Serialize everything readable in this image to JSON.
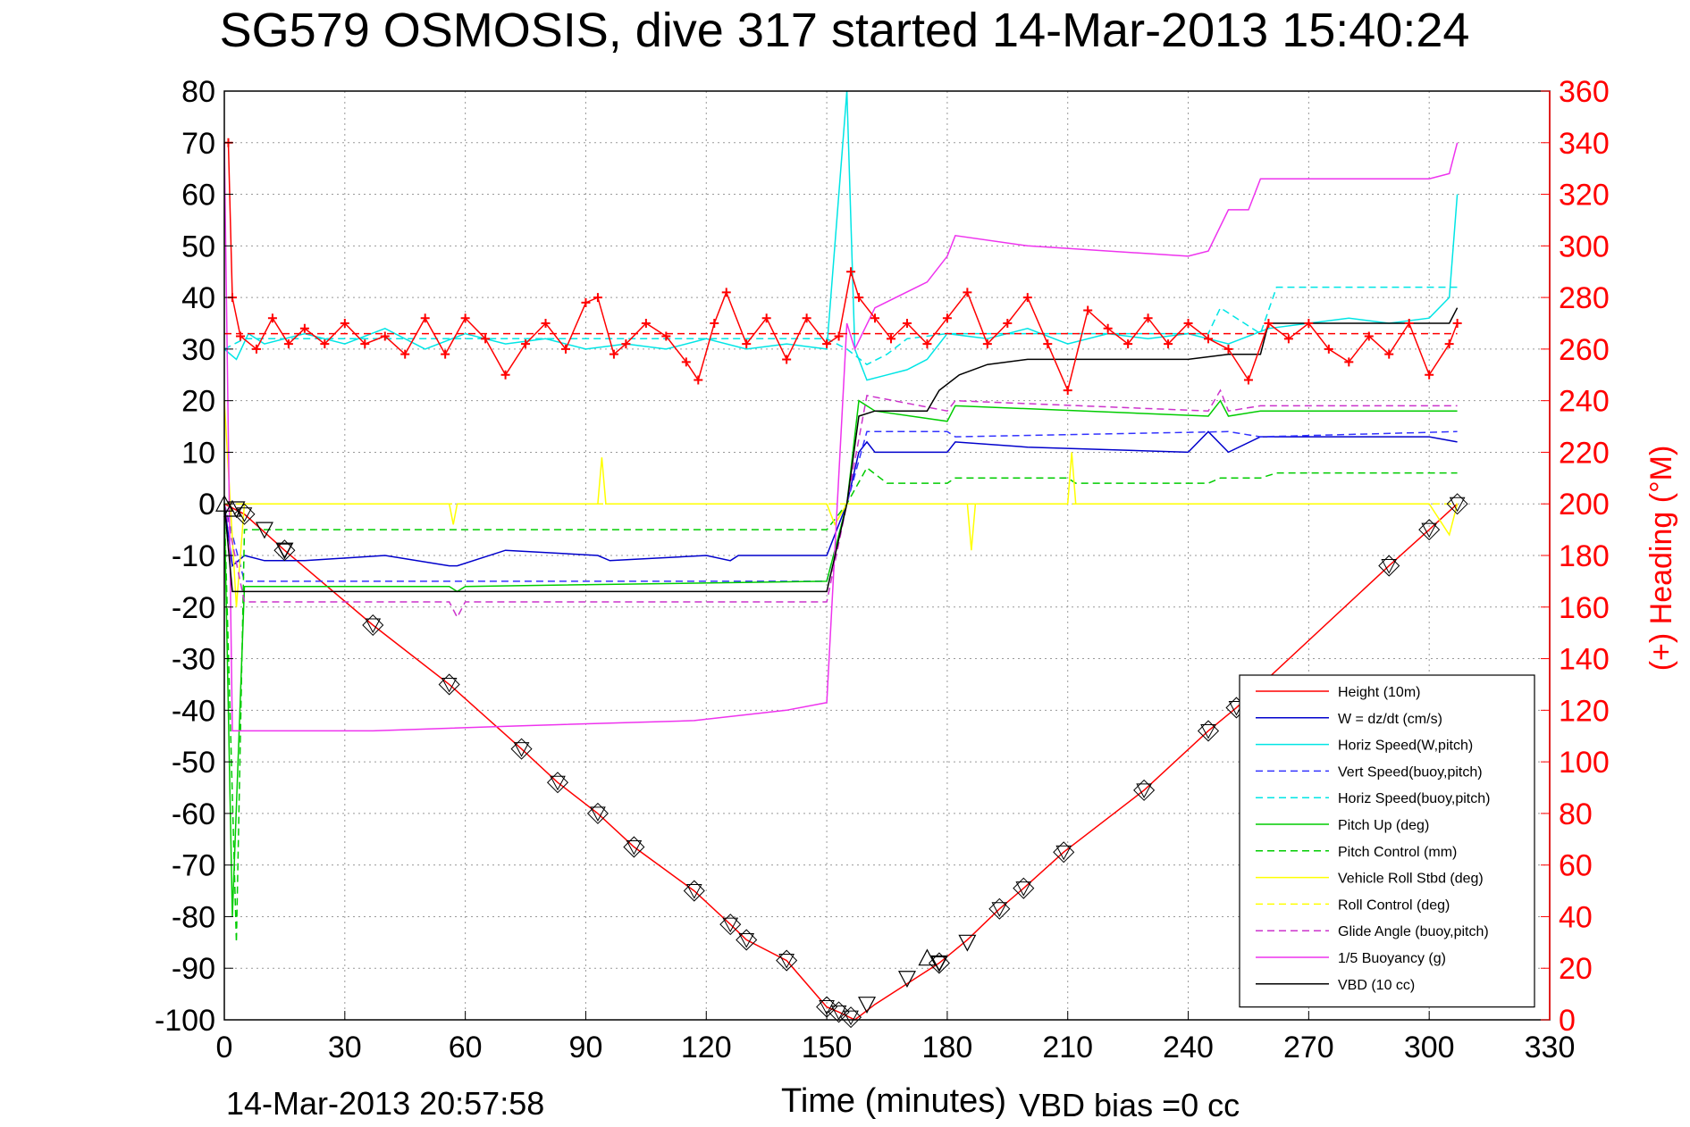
{
  "chart_data": {
    "type": "line",
    "title": "SG579 OSMOSIS, dive 317 started 14-Mar-2013 15:40:24",
    "xlabel": "Time (minutes)",
    "ylabel": "",
    "y2label": "(+) Heading (°M)",
    "footer_left": "14-Mar-2013 20:57:58",
    "footer_right": "VBD bias =0 cc",
    "xlim": [
      0,
      330
    ],
    "ylim": [
      -100,
      80
    ],
    "y2lim": [
      0,
      360
    ],
    "x_ticks": [
      0,
      30,
      60,
      90,
      120,
      150,
      180,
      210,
      240,
      270,
      300,
      330
    ],
    "y_ticks": [
      80,
      70,
      60,
      50,
      40,
      30,
      20,
      10,
      0,
      -10,
      -20,
      -30,
      -40,
      -50,
      -60,
      -70,
      -80,
      -90,
      -100
    ],
    "y2_ticks": [
      360,
      340,
      320,
      300,
      280,
      260,
      240,
      220,
      200,
      180,
      160,
      140,
      120,
      100,
      80,
      60,
      40,
      20,
      0
    ],
    "grid": true,
    "legend_position": "bottom-right",
    "series": [
      {
        "name": "Height (10m)",
        "color": "#ff0000",
        "style": "solid",
        "x": [
          0,
          5,
          15,
          37,
          56,
          74,
          83,
          93,
          102,
          117,
          126,
          130,
          140,
          150,
          153,
          157,
          162,
          178,
          185,
          193,
          199,
          209,
          229,
          245,
          252,
          290,
          300,
          307
        ],
        "y": [
          0,
          -2,
          -9,
          -23.5,
          -35,
          -47.5,
          -54,
          -60,
          -66.5,
          -75,
          -81.5,
          -84.5,
          -88.5,
          -97.5,
          -98.5,
          -100,
          -97,
          -89,
          -84.5,
          -78.5,
          -74.5,
          -67.5,
          -55.5,
          -44,
          -39.5,
          -12,
          -5,
          0
        ]
      },
      {
        "name": "W = dz/dt (cm/s)",
        "color": "#0000cc",
        "style": "solid",
        "x": [
          0,
          2,
          5,
          10,
          20,
          40,
          56,
          58,
          70,
          93,
          96,
          120,
          126,
          128,
          150,
          155,
          158,
          160,
          162,
          170,
          180,
          182,
          200,
          240,
          245,
          250,
          258,
          270,
          300,
          307
        ],
        "y": [
          0,
          -12,
          -10,
          -11,
          -11,
          -10,
          -12,
          -12,
          -9,
          -10,
          -11,
          -10,
          -11,
          -10,
          -10,
          0,
          10,
          12,
          10,
          10,
          10,
          12,
          11,
          10,
          14,
          10,
          13,
          13,
          13,
          12
        ]
      },
      {
        "name": "Horiz Speed(W,pitch)",
        "color": "#00e5e5",
        "style": "solid",
        "x": [
          0,
          3,
          6,
          10,
          20,
          30,
          40,
          50,
          60,
          70,
          80,
          90,
          100,
          110,
          120,
          130,
          140,
          150,
          155,
          157,
          160,
          165,
          170,
          175,
          180,
          190,
          200,
          210,
          220,
          230,
          240,
          250,
          260,
          270,
          280,
          290,
          300,
          305,
          307
        ],
        "y": [
          30,
          28,
          33,
          31,
          33,
          31,
          34,
          30,
          33,
          31,
          32,
          30,
          31,
          30,
          32,
          30,
          31,
          30,
          80,
          30,
          24,
          25,
          26,
          28,
          33,
          32,
          34,
          31,
          33,
          32,
          33,
          31,
          34,
          35,
          36,
          35,
          36,
          40,
          60
        ]
      },
      {
        "name": "Vert Speed(buoy,pitch)",
        "color": "#3333ff",
        "style": "dashed",
        "x": [
          0,
          5,
          150,
          155,
          160,
          180,
          182,
          250,
          258,
          307
        ],
        "y": [
          0,
          -15,
          -15,
          0,
          14,
          14,
          13,
          14,
          13,
          14
        ]
      },
      {
        "name": "Horiz Speed(buoy,pitch)",
        "color": "#00e5e5",
        "style": "dashed",
        "x": [
          0,
          5,
          150,
          155,
          160,
          165,
          170,
          180,
          190,
          245,
          248,
          258,
          262,
          307
        ],
        "y": [
          30,
          32,
          32,
          30,
          27,
          29,
          32,
          33,
          33,
          33,
          38,
          33,
          42,
          42
        ]
      },
      {
        "name": "Pitch Up (deg)",
        "color": "#00cc00",
        "style": "solid",
        "x": [
          0,
          2,
          5,
          56,
          58,
          60,
          150,
          155,
          158,
          162,
          180,
          182,
          245,
          248,
          250,
          258,
          307
        ],
        "y": [
          0,
          -80,
          -16,
          -16,
          -17,
          -16,
          -15,
          0,
          20,
          18,
          16,
          19,
          17,
          20,
          17,
          18,
          18
        ]
      },
      {
        "name": "Pitch Control (mm)",
        "color": "#00cc00",
        "style": "dashed",
        "x": [
          0,
          3,
          5,
          150,
          155,
          160,
          165,
          180,
          182,
          210,
          212,
          245,
          248,
          258,
          262,
          307
        ],
        "y": [
          0,
          -85,
          -5,
          -5,
          0,
          7,
          4,
          4,
          5,
          5,
          4,
          4,
          5,
          5,
          6,
          6
        ]
      },
      {
        "name": "Vehicle Roll Stbd (deg)",
        "color": "#ffff00",
        "style": "solid",
        "x": [
          0,
          3,
          5,
          56,
          57,
          58,
          93,
          94,
          95,
          150,
          152,
          155,
          160,
          180,
          185,
          186,
          187,
          210,
          211,
          212,
          300,
          305,
          307
        ],
        "y": [
          20,
          -20,
          0,
          0,
          -4,
          0,
          0,
          9,
          0,
          0,
          -4,
          0,
          0,
          0,
          0,
          -9,
          0,
          0,
          10,
          0,
          0,
          -6,
          0
        ]
      },
      {
        "name": "Roll Control (deg)",
        "color": "#ffff00",
        "style": "dashed",
        "x": [
          0,
          5,
          150,
          155,
          307
        ],
        "y": [
          0,
          0,
          0,
          0,
          0
        ]
      },
      {
        "name": "Glide Angle (buoy,pitch)",
        "color": "#cc33cc",
        "style": "dashed",
        "x": [
          0,
          5,
          56,
          58,
          60,
          150,
          155,
          160,
          180,
          182,
          245,
          248,
          250,
          258,
          307
        ],
        "y": [
          0,
          -19,
          -19,
          -22,
          -19,
          -19,
          0,
          21,
          18,
          20,
          18,
          22,
          18,
          19,
          19
        ]
      },
      {
        "name": "1/5 Buoyancy (g)",
        "color": "#ee33ee",
        "style": "solid",
        "x": [
          0,
          2,
          37,
          74,
          117,
          140,
          150,
          155,
          157,
          162,
          175,
          180,
          182,
          200,
          240,
          245,
          250,
          255,
          258,
          262,
          300,
          305,
          307
        ],
        "y": [
          70,
          -44,
          -44,
          -43,
          -42,
          -40,
          -38.5,
          35,
          30,
          38,
          43,
          48,
          52,
          50,
          48,
          49,
          57,
          57,
          63,
          63,
          63,
          64,
          70
        ]
      },
      {
        "name": "VBD (10 cc)",
        "color": "#000000",
        "style": "solid",
        "x": [
          0,
          2,
          5,
          150,
          155,
          158,
          162,
          175,
          178,
          183,
          190,
          200,
          210,
          240,
          250,
          258,
          260,
          270,
          305,
          307
        ],
        "y": [
          0,
          -17,
          -17,
          -17,
          0,
          17,
          18,
          18,
          22,
          25,
          27,
          28,
          28,
          28,
          29,
          29,
          35,
          35,
          35,
          38
        ]
      },
      {
        "name": "",
        "color": "#ff0000",
        "style": "plus-markers",
        "axis": "right",
        "x": [
          1,
          2,
          4,
          8,
          12,
          16,
          20,
          25,
          30,
          35,
          40,
          45,
          50,
          55,
          60,
          65,
          70,
          75,
          80,
          85,
          90,
          93,
          97,
          100,
          105,
          110,
          115,
          118,
          122,
          125,
          130,
          135,
          140,
          145,
          150,
          153,
          156,
          158,
          162,
          166,
          170,
          175,
          180,
          185,
          190,
          195,
          200,
          205,
          210,
          215,
          220,
          225,
          230,
          235,
          240,
          245,
          250,
          255,
          260,
          265,
          270,
          275,
          280,
          285,
          290,
          295,
          300,
          305,
          307
        ],
        "y": [
          340,
          280,
          265,
          260,
          272,
          262,
          268,
          262,
          270,
          262,
          265,
          258,
          272,
          258,
          272,
          264,
          250,
          262,
          270,
          260,
          278,
          280,
          258,
          262,
          270,
          265,
          255,
          248,
          270,
          282,
          262,
          272,
          256,
          272,
          262,
          265,
          290,
          280,
          272,
          264,
          270,
          262,
          272,
          282,
          262,
          270,
          280,
          262,
          244,
          275,
          268,
          262,
          272,
          262,
          270,
          264,
          260,
          248,
          270,
          264,
          270,
          260,
          255,
          265,
          258,
          270,
          250,
          262,
          270
        ]
      },
      {
        "name": "",
        "color": "#ff0000",
        "style": "dashed",
        "axis": "right",
        "x": [
          0,
          307
        ],
        "y": [
          266,
          266
        ]
      }
    ],
    "depth_markers": {
      "triangle_down_x": [
        3,
        10,
        15,
        160,
        170,
        178,
        185
      ],
      "triangle_down_y": [
        -1,
        -5,
        -9,
        -97,
        -92,
        -89,
        -85
      ],
      "triangle_up_x": [
        0,
        2,
        175
      ],
      "triangle_up_y": [
        0,
        -1,
        -88
      ],
      "boxed_x": [
        5,
        15,
        37,
        56,
        74,
        83,
        93,
        102,
        117,
        126,
        130,
        140,
        150,
        153,
        156,
        178,
        193,
        199,
        209,
        229,
        245,
        252,
        290,
        300,
        307
      ],
      "boxed_y": [
        -2,
        -9,
        -23.5,
        -35,
        -47.5,
        -54,
        -60,
        -66.5,
        -75,
        -81.5,
        -84.5,
        -88.5,
        -97.5,
        -98.5,
        -99.5,
        -89,
        -78.5,
        -74.5,
        -67.5,
        -55.5,
        -44,
        -39.5,
        -12,
        -5,
        0
      ]
    }
  }
}
